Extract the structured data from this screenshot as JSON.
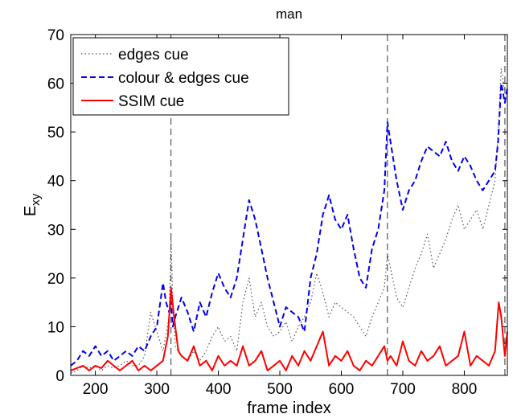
{
  "chart_data": {
    "type": "line",
    "title": "man",
    "xlabel": "frame index",
    "ylabel_main": "E",
    "ylabel_sub": "xy",
    "xlim": [
      160,
      870
    ],
    "ylim": [
      0,
      70
    ],
    "xticks": [
      200,
      300,
      400,
      500,
      600,
      700,
      800
    ],
    "yticks": [
      0,
      10,
      20,
      30,
      40,
      50,
      60,
      70
    ],
    "grid": false,
    "legend_position": "top-left",
    "vlines": [
      323,
      675,
      866
    ],
    "series": [
      {
        "name": "edges cue",
        "color": "#555555",
        "style": "dotted",
        "x": [
          160,
          170,
          180,
          190,
          200,
          210,
          220,
          230,
          240,
          250,
          260,
          270,
          280,
          290,
          300,
          310,
          320,
          323,
          326,
          330,
          340,
          350,
          360,
          370,
          380,
          390,
          400,
          410,
          420,
          430,
          440,
          450,
          460,
          470,
          480,
          490,
          500,
          510,
          520,
          530,
          540,
          550,
          560,
          570,
          580,
          590,
          600,
          610,
          620,
          630,
          640,
          650,
          660,
          670,
          675,
          680,
          690,
          700,
          710,
          720,
          730,
          740,
          750,
          760,
          770,
          780,
          790,
          800,
          810,
          820,
          830,
          840,
          850,
          855,
          860,
          866,
          870
        ],
        "y": [
          0.5,
          1,
          2,
          1.5,
          2,
          1,
          2,
          1.5,
          2,
          3,
          2,
          2,
          4,
          13,
          9,
          5,
          12,
          28,
          15,
          6,
          4,
          3,
          5,
          3,
          5,
          8,
          10,
          7,
          8,
          5,
          15,
          20,
          12,
          15,
          10,
          8,
          9,
          11,
          7,
          10,
          12,
          15,
          21,
          17,
          12,
          15,
          14,
          13,
          12,
          10,
          8,
          12,
          15,
          18,
          25,
          22,
          16,
          14,
          18,
          22,
          25,
          29,
          22,
          25,
          28,
          32,
          35,
          30,
          32,
          34,
          30,
          35,
          40,
          50,
          63,
          58,
          57
        ]
      },
      {
        "name": "colour & edges cue",
        "color": "#0000ee",
        "style": "dashed",
        "x": [
          160,
          170,
          180,
          190,
          200,
          210,
          220,
          230,
          240,
          250,
          260,
          270,
          280,
          290,
          300,
          310,
          315,
          320,
          323,
          326,
          330,
          340,
          350,
          360,
          370,
          380,
          390,
          400,
          410,
          420,
          430,
          440,
          450,
          460,
          470,
          480,
          490,
          500,
          510,
          520,
          530,
          540,
          550,
          560,
          570,
          580,
          590,
          600,
          610,
          620,
          630,
          640,
          650,
          660,
          670,
          675,
          680,
          690,
          700,
          710,
          720,
          730,
          740,
          750,
          760,
          770,
          780,
          790,
          800,
          810,
          820,
          830,
          840,
          850,
          855,
          860,
          866,
          870
        ],
        "y": [
          2,
          3,
          5,
          4,
          6,
          4,
          5,
          3,
          4,
          5,
          4,
          6,
          5,
          8,
          10,
          19,
          15,
          13,
          15,
          10,
          12,
          16,
          13,
          9,
          15,
          12,
          17,
          21,
          18,
          16,
          20,
          28,
          36,
          32,
          26,
          20,
          15,
          10,
          14,
          13,
          12,
          9,
          20,
          25,
          33,
          37,
          32,
          30,
          33,
          26,
          20,
          18,
          26,
          30,
          38,
          52,
          48,
          40,
          34,
          38,
          40,
          44,
          47,
          46,
          45,
          48,
          44,
          42,
          45,
          43,
          40,
          38,
          40,
          42,
          48,
          60,
          56,
          59
        ]
      },
      {
        "name": "SSIM cue",
        "color": "#ff0000",
        "style": "solid",
        "x": [
          160,
          170,
          180,
          190,
          200,
          210,
          220,
          230,
          240,
          250,
          260,
          270,
          280,
          290,
          300,
          310,
          318,
          323,
          328,
          335,
          340,
          350,
          360,
          370,
          380,
          390,
          400,
          410,
          420,
          430,
          440,
          450,
          460,
          470,
          480,
          490,
          500,
          510,
          520,
          530,
          540,
          550,
          560,
          570,
          580,
          590,
          600,
          610,
          620,
          630,
          640,
          650,
          660,
          670,
          675,
          680,
          690,
          700,
          710,
          720,
          730,
          740,
          750,
          760,
          770,
          780,
          790,
          800,
          810,
          820,
          830,
          840,
          850,
          856,
          860,
          866,
          870
        ],
        "y": [
          1,
          1.5,
          2,
          1,
          2,
          1.5,
          3,
          2,
          1,
          2,
          3,
          1,
          2,
          1,
          2,
          3,
          8,
          18,
          12,
          5,
          4,
          3,
          6,
          2,
          3,
          1,
          4,
          2,
          3,
          2,
          6,
          2,
          3,
          5,
          1,
          2,
          3,
          1,
          4,
          2,
          5,
          3,
          6,
          9,
          2,
          4,
          3,
          5,
          2,
          1,
          3,
          2,
          4,
          6,
          3,
          4,
          2,
          7,
          3,
          2,
          5,
          3,
          4,
          6,
          2,
          3,
          4,
          9,
          2,
          4,
          3,
          2,
          5,
          15,
          12,
          4,
          9
        ]
      }
    ]
  }
}
